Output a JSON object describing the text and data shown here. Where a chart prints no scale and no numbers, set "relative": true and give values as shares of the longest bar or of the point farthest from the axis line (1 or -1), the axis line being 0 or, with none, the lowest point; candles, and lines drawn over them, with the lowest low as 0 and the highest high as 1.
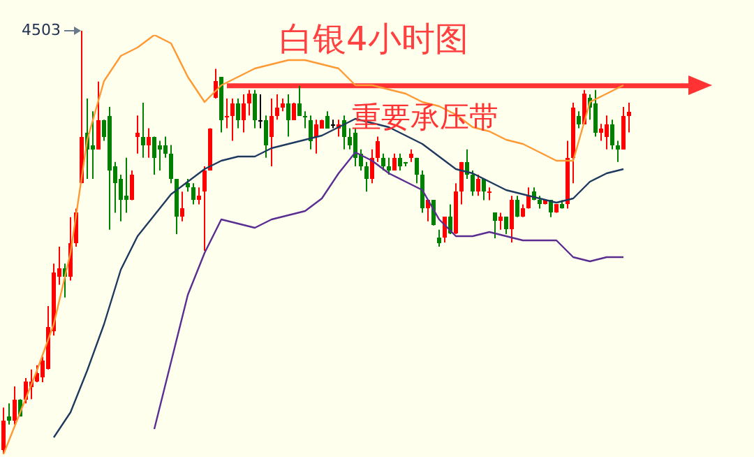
{
  "chart_data": [
    {
      "type": "candlestick",
      "title": "白银4小时图",
      "relative": true,
      "categories": [
        null,
        null,
        null,
        null,
        null,
        null,
        null,
        null,
        null,
        null,
        null,
        null,
        null,
        null,
        null,
        null,
        null,
        null,
        null,
        null,
        null,
        null,
        null,
        null,
        null,
        null,
        null,
        null,
        null,
        null,
        null,
        null,
        null,
        null,
        null,
        null,
        null,
        null,
        null,
        null,
        null,
        null,
        null,
        null,
        null,
        null,
        null,
        null,
        null,
        null,
        null,
        null,
        null,
        null,
        null,
        null,
        null,
        null,
        null,
        null,
        null,
        null,
        null,
        null,
        null,
        null,
        null,
        null,
        null,
        null,
        null,
        null,
        null,
        null,
        null,
        null,
        null,
        null,
        null,
        null,
        null,
        null,
        null,
        null,
        null,
        null,
        null,
        null,
        null,
        null,
        null,
        null,
        null,
        null,
        null,
        null,
        null,
        null,
        null,
        null,
        null,
        null,
        null,
        null,
        null,
        null,
        null,
        null,
        null,
        null,
        null,
        null,
        null
      ],
      "ohlc": [
        [
          0.01,
          0.11,
          0,
          0.08
        ],
        [
          0.09,
          0.12,
          0.07,
          0.08
        ],
        [
          0.08,
          0.16,
          0.07,
          0.13
        ],
        [
          0.13,
          0.13,
          0.09,
          0.09
        ],
        [
          0.13,
          0.18,
          0.12,
          0.17
        ],
        [
          0.16,
          0.2,
          0.13,
          0.17
        ],
        [
          0.17,
          0.21,
          0.17,
          0.19
        ],
        [
          0.18,
          0.23,
          0.17,
          0.22
        ],
        [
          0.2,
          0.35,
          0.2,
          0.3
        ],
        [
          0.29,
          0.45,
          0.28,
          0.43
        ],
        [
          0.42,
          0.49,
          0.4,
          0.44
        ],
        [
          0.44,
          0.45,
          0.37,
          0.42
        ],
        [
          0.42,
          0.56,
          0.41,
          0.5
        ],
        [
          0.5,
          0.58,
          0.49,
          0.57
        ],
        [
          0.64,
          1,
          0.64,
          0.75
        ],
        [
          0.76,
          0.84,
          0.65,
          0.72
        ],
        [
          0.73,
          0.81,
          0.65,
          0.72
        ],
        [
          0.72,
          0.88,
          0.72,
          0.79
        ],
        [
          0.79,
          0.79,
          0.74,
          0.75
        ],
        [
          0.8,
          0.82,
          0.53,
          0.67
        ],
        [
          0.68,
          0.69,
          0.57,
          0.64
        ],
        [
          0.65,
          0.66,
          0.55,
          0.6
        ],
        [
          0.61,
          0.7,
          0.57,
          0.6
        ],
        [
          0.6,
          0.67,
          0.6,
          0.66
        ],
        [
          0.75,
          0.8,
          0.71,
          0.76
        ],
        [
          0.75,
          0.83,
          0.7,
          0.73
        ],
        [
          0.73,
          0.77,
          0.7,
          0.75
        ],
        [
          0.75,
          0.75,
          0.66,
          0.7
        ],
        [
          0.73,
          0.74,
          0.67,
          0.72
        ],
        [
          0.73,
          0.75,
          0.7,
          0.71
        ],
        [
          0.71,
          0.73,
          0.64,
          0.65
        ],
        [
          0.65,
          0.65,
          0.52,
          0.56
        ],
        [
          0.56,
          0.62,
          0.55,
          0.58
        ],
        [
          0.64,
          0.65,
          0.62,
          0.63
        ],
        [
          0.63,
          0.64,
          0.59,
          0.6
        ],
        [
          0.6,
          0.63,
          0.59,
          0.61
        ],
        [
          0.62,
          0.68,
          0.48,
          0.67
        ],
        [
          0.67,
          0.77,
          0.67,
          0.77
        ],
        [
          0.84,
          0.91,
          0.84,
          0.88
        ],
        [
          0.89,
          0.89,
          0.76,
          0.79
        ],
        [
          0.8,
          0.84,
          0.77,
          0.8
        ],
        [
          0.8,
          0.84,
          0.74,
          0.83
        ],
        [
          0.83,
          0.84,
          0.77,
          0.79
        ],
        [
          0.79,
          0.85,
          0.76,
          0.83
        ],
        [
          0.83,
          0.86,
          0.8,
          0.85
        ],
        [
          0.85,
          0.86,
          0.77,
          0.79
        ],
        [
          0.79,
          0.85,
          0.77,
          0.79
        ],
        [
          0.79,
          0.8,
          0.7,
          0.73
        ],
        [
          0.75,
          0.84,
          0.68,
          0.8
        ],
        [
          0.8,
          0.85,
          0.79,
          0.82
        ],
        [
          0.82,
          0.84,
          0.81,
          0.83
        ],
        [
          0.83,
          0.85,
          0.75,
          0.79
        ],
        [
          0.79,
          0.83,
          0.79,
          0.83
        ],
        [
          0.83,
          0.87,
          0.8,
          0.8
        ],
        [
          0.8,
          0.81,
          0.77,
          0.8
        ],
        [
          0.79,
          0.8,
          0.72,
          0.74
        ],
        [
          0.75,
          0.79,
          0.71,
          0.78
        ],
        [
          0.77,
          0.79,
          0.77,
          0.79
        ],
        [
          0.8,
          0.81,
          0.77,
          0.77
        ],
        [
          0.78,
          0.79,
          0.77,
          0.78
        ],
        [
          0.77,
          0.79,
          0.75,
          0.78
        ],
        [
          0.79,
          0.8,
          0.72,
          0.75
        ],
        [
          0.75,
          0.77,
          0.72,
          0.73
        ],
        [
          0.76,
          0.77,
          0.68,
          0.7
        ],
        [
          0.71,
          0.72,
          0.67,
          0.68
        ],
        [
          0.68,
          0.69,
          0.62,
          0.65
        ],
        [
          0.65,
          0.72,
          0.64,
          0.7
        ],
        [
          0.7,
          0.75,
          0.69,
          0.74
        ],
        [
          0.7,
          0.71,
          0.67,
          0.68
        ],
        [
          0.68,
          0.7,
          0.66,
          0.67
        ],
        [
          0.67,
          0.71,
          0.67,
          0.7
        ],
        [
          0.7,
          0.71,
          0.67,
          0.68
        ],
        [
          0.69,
          0.69,
          0.68,
          0.69
        ],
        [
          0.7,
          0.72,
          0.69,
          0.71
        ],
        [
          0.7,
          0.7,
          0.64,
          0.66
        ],
        [
          0.66,
          0.67,
          0.57,
          0.58
        ],
        [
          0.58,
          0.6,
          0.55,
          0.6
        ],
        [
          0.6,
          0.6,
          0.54,
          0.54
        ],
        [
          0.51,
          0.53,
          0.49,
          0.5
        ],
        [
          0.51,
          0.56,
          0.5,
          0.56
        ],
        [
          0.56,
          0.59,
          0.52,
          0.52
        ],
        [
          0.52,
          0.64,
          0.52,
          0.62
        ],
        [
          0.62,
          0.69,
          0.59,
          0.69
        ],
        [
          0.69,
          0.72,
          0.65,
          0.66
        ],
        [
          0.66,
          0.67,
          0.61,
          0.62
        ],
        [
          0.62,
          0.66,
          0.61,
          0.65
        ],
        [
          0.65,
          0.65,
          0.6,
          0.62
        ],
        [
          0.62,
          0.63,
          0.6,
          0.62
        ],
        [
          0.57,
          0.57,
          0.51,
          0.55
        ],
        [
          0.55,
          0.57,
          0.53,
          0.56
        ],
        [
          0.56,
          0.56,
          0.52,
          0.53
        ],
        [
          0.53,
          0.61,
          0.5,
          0.6
        ],
        [
          0.6,
          0.61,
          0.56,
          0.56
        ],
        [
          0.56,
          0.59,
          0.56,
          0.58
        ],
        [
          0.58,
          0.63,
          0.58,
          0.61
        ],
        [
          0.62,
          0.63,
          0.6,
          0.6
        ],
        [
          0.6,
          0.61,
          0.58,
          0.59
        ],
        [
          0.59,
          0.6,
          0.59,
          0.6
        ],
        [
          0.6,
          0.6,
          0.56,
          0.57
        ],
        [
          0.57,
          0.59,
          0.57,
          0.59
        ],
        [
          0.59,
          0.6,
          0.58,
          0.58
        ],
        [
          0.59,
          0.74,
          0.58,
          0.7
        ],
        [
          0.7,
          0.83,
          0.64,
          0.82
        ],
        [
          0.8,
          0.81,
          0.77,
          0.78
        ],
        [
          0.78,
          0.86,
          0.78,
          0.85
        ],
        [
          0.84,
          0.85,
          0.79,
          0.82
        ],
        [
          0.83,
          0.86,
          0.75,
          0.76
        ],
        [
          0.76,
          0.78,
          0.74,
          0.77
        ],
        [
          0.75,
          0.8,
          0.72,
          0.78
        ],
        [
          0.78,
          0.79,
          0.72,
          0.73
        ],
        [
          0.73,
          0.74,
          0.69,
          0.72
        ],
        [
          0.72,
          0.82,
          0.72,
          0.8
        ],
        [
          0.8,
          0.83,
          0.76,
          0.81
        ]
      ],
      "colors": [
        "#ff0000",
        "#008000",
        "#ff0000",
        "#008000",
        "#ff0000",
        "#ff0000",
        "#ff0000",
        "#ff0000",
        "#ff0000",
        "#ff0000",
        "#ff0000",
        "#008000",
        "#ff0000",
        "#ff0000",
        "#ff0000",
        "#008000",
        "#008000",
        "#ff0000",
        "#008000",
        "#008000",
        "#008000",
        "#008000",
        "#008000",
        "#ff0000",
        "#ff0000",
        "#008000",
        "#ff0000",
        "#008000",
        "#008000",
        "#008000",
        "#008000",
        "#008000",
        "#ff0000",
        "#008000",
        "#008000",
        "#ff0000",
        "#ff0000",
        "#ff0000",
        "#ff0000",
        "#008000",
        "#ff0000",
        "#ff0000",
        "#008000",
        "#ff0000",
        "#ff0000",
        "#008000",
        "#000000",
        "#008000",
        "#ff0000",
        "#ff0000",
        "#ff0000",
        "#008000",
        "#ff0000",
        "#008000",
        "#008000",
        "#008000",
        "#ff0000",
        "#ff0000",
        "#008000",
        "#000000",
        "#ff0000",
        "#008000",
        "#008000",
        "#008000",
        "#008000",
        "#008000",
        "#ff0000",
        "#ff0000",
        "#008000",
        "#008000",
        "#ff0000",
        "#008000",
        "#008000",
        "#ff0000",
        "#008000",
        "#008000",
        "#ff0000",
        "#008000",
        "#008000",
        "#ff0000",
        "#008000",
        "#ff0000",
        "#ff0000",
        "#008000",
        "#008000",
        "#ff0000",
        "#008000",
        "#ff0000",
        "#008000",
        "#ff0000",
        "#008000",
        "#ff0000",
        "#008000",
        "#ff0000",
        "#ff0000",
        "#008000",
        "#008000",
        "#ff0000",
        "#008000",
        "#ff0000",
        "#008000",
        "#ff0000",
        "#ff0000",
        "#008000",
        "#ff0000",
        "#008000",
        "#008000",
        "#ff0000",
        "#ff0000",
        "#008000",
        "#008000",
        "#ff0000",
        "#ff0000"
      ],
      "ref_lines": [
        {
          "axis": "y",
          "value": 0.87,
          "color": "#ff3333"
        }
      ],
      "annotations": [
        "4503",
        "重要承压带"
      ]
    },
    {
      "type": "line",
      "relative": true,
      "categories": [
        null,
        null,
        null,
        null,
        null,
        null,
        null,
        null,
        null,
        null,
        null,
        null,
        null,
        null,
        null,
        null,
        null,
        null,
        null,
        null,
        null,
        null,
        null,
        null,
        null,
        null,
        null,
        null,
        null,
        null,
        null,
        null,
        null,
        null,
        null,
        null,
        null,
        null
      ],
      "series": [
        {
          "color": "#ff9933",
          "values": [
            0,
            0.1,
            0.2,
            0.31,
            0.48,
            0.75,
            0.89,
            0.95,
            0.97,
            1,
            0.98,
            0.9,
            0.84,
            0.88,
            0.9,
            0.92,
            0.93,
            0.94,
            0.94,
            0.93,
            0.92,
            0.88,
            0.88,
            0.87,
            0.86,
            0.84,
            0.83,
            0.81,
            0.78,
            0.77,
            0.75,
            0.74,
            0.72,
            0.7,
            0.7,
            0.84,
            0.86,
            0.88
          ]
        },
        {
          "color": "#1f3a5f",
          "values": [
            null,
            null,
            null,
            0.04,
            0.1,
            0.2,
            0.31,
            0.44,
            0.52,
            0.57,
            0.62,
            0.65,
            0.68,
            0.7,
            0.71,
            0.71,
            0.73,
            0.74,
            0.75,
            0.76,
            0.78,
            0.8,
            0.79,
            0.78,
            0.76,
            0.74,
            0.71,
            0.68,
            0.67,
            0.65,
            0.63,
            0.62,
            0.61,
            0.6,
            0.61,
            0.65,
            0.67,
            0.68
          ]
        },
        {
          "color": "#5a2d91",
          "values": [
            null,
            null,
            null,
            null,
            null,
            null,
            null,
            null,
            null,
            0.06,
            0.22,
            0.38,
            0.48,
            0.56,
            0.55,
            0.54,
            0.56,
            0.57,
            0.58,
            0.61,
            0.67,
            0.72,
            0.7,
            0.67,
            0.65,
            0.63,
            0.56,
            0.52,
            0.52,
            0.53,
            0.52,
            0.51,
            0.51,
            0.51,
            0.47,
            0.46,
            0.47,
            0.47
          ]
        }
      ]
    }
  ]
}
